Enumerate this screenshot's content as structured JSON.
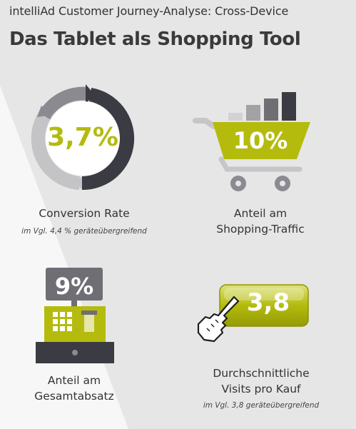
{
  "header": {
    "subtitle": "intelliAd Customer Journey-Analyse: Cross-Device",
    "title": "Das Tablet als Shopping Tool"
  },
  "conversion": {
    "value": "3,7%",
    "label": "Conversion Rate",
    "note": "im Vgl. 4,4 % geräteübergreifend"
  },
  "traffic": {
    "value": "10%",
    "label_line1": "Anteil am",
    "label_line2": "Shopping-Traffic"
  },
  "sales": {
    "value": "9%",
    "label_line1": "Anteil am",
    "label_line2": "Gesamtabsatz"
  },
  "visits": {
    "value": "3,8",
    "label_line1": "Durchschnittliche",
    "label_line2": "Visits pro Kauf",
    "note": "im Vgl. 3,8 geräteübergreifend"
  },
  "colors": {
    "accent": "#b4bb0d",
    "dark": "#3a3a42",
    "mid": "#8a8a8f",
    "light": "#c6c6c9"
  }
}
